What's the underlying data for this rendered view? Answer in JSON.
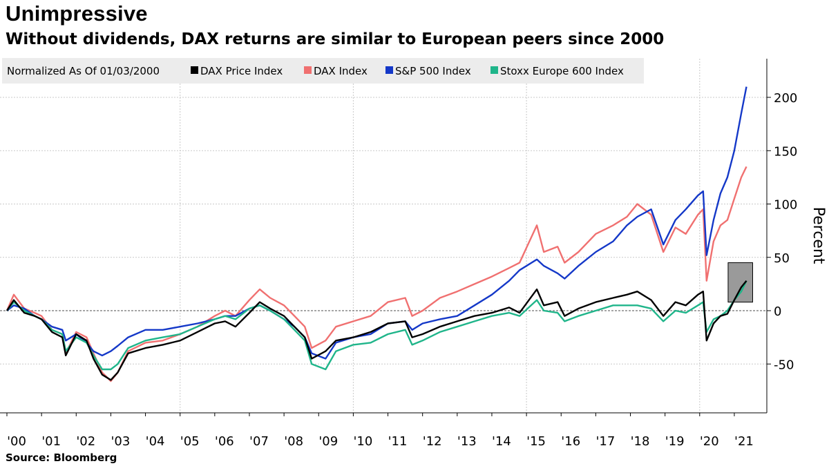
{
  "header": {
    "title": "Unimpressive",
    "subtitle": "Without dividends, DAX returns are similar to European peers since 2000"
  },
  "footer": {
    "source": "Source: Bloomberg"
  },
  "chart_data": {
    "type": "line",
    "legend_title": "Normalized As Of 01/03/2000",
    "legend_position": "top-left",
    "ylabel": "Percent",
    "ylim": [
      -95,
      235
    ],
    "yticks": [
      200,
      150,
      100,
      50,
      0,
      -50
    ],
    "xlim": [
      2000.0,
      2021.4
    ],
    "x_tick_labels": [
      "'00",
      "'01",
      "'02",
      "'03",
      "'04",
      "'05",
      "'06",
      "'07",
      "'08",
      "'09",
      "'10",
      "'11",
      "'12",
      "'13",
      "'14",
      "'15",
      "'16",
      "'17",
      "'18",
      "'19",
      "'20",
      "'21"
    ],
    "x_tick_positions": [
      2000,
      2001,
      2002,
      2003,
      2004,
      2005,
      2006,
      2007,
      2008,
      2009,
      2010,
      2011,
      2012,
      2013,
      2014,
      2015,
      2016,
      2017,
      2018,
      2019,
      2020,
      2021
    ],
    "grid": true,
    "zero_line": true,
    "highlight_box": {
      "x": [
        2021.0,
        2021.35
      ],
      "y": [
        8,
        45
      ]
    },
    "series": [
      {
        "name": "DAX Price Index",
        "color": "#000000",
        "x": [
          2000.0,
          2000.2,
          2000.5,
          2000.8,
          2001.0,
          2001.3,
          2001.6,
          2001.7,
          2002.0,
          2002.3,
          2002.5,
          2002.75,
          2003.0,
          2003.2,
          2003.5,
          2004.0,
          2004.5,
          2005.0,
          2005.5,
          2006.0,
          2006.3,
          2006.6,
          2007.0,
          2007.3,
          2007.6,
          2008.0,
          2008.3,
          2008.6,
          2008.8,
          2009.2,
          2009.5,
          2010.0,
          2010.5,
          2011.0,
          2011.5,
          2011.7,
          2012.0,
          2012.5,
          2013.0,
          2013.5,
          2014.0,
          2014.5,
          2014.8,
          2015.3,
          2015.5,
          2015.9,
          2016.1,
          2016.5,
          2017.0,
          2017.5,
          2017.9,
          2018.2,
          2018.6,
          2018.95,
          2019.3,
          2019.6,
          2019.95,
          2020.1,
          2020.2,
          2020.4,
          2020.6,
          2020.8,
          2021.0,
          2021.2,
          2021.35
        ],
        "y": [
          0,
          10,
          -2,
          -5,
          -8,
          -20,
          -25,
          -42,
          -22,
          -28,
          -45,
          -60,
          -65,
          -58,
          -40,
          -35,
          -32,
          -28,
          -20,
          -12,
          -10,
          -15,
          -2,
          8,
          2,
          -5,
          -15,
          -25,
          -45,
          -38,
          -28,
          -25,
          -20,
          -12,
          -10,
          -25,
          -22,
          -15,
          -10,
          -5,
          -2,
          3,
          -2,
          20,
          5,
          8,
          -5,
          2,
          8,
          12,
          15,
          18,
          10,
          -5,
          8,
          5,
          15,
          18,
          -28,
          -12,
          -5,
          -3,
          10,
          22,
          28
        ]
      },
      {
        "name": "DAX Index",
        "color": "#f07070",
        "x": [
          2000.0,
          2000.2,
          2000.5,
          2000.8,
          2001.0,
          2001.3,
          2001.6,
          2001.7,
          2002.0,
          2002.3,
          2002.5,
          2002.75,
          2003.0,
          2003.2,
          2003.5,
          2004.0,
          2004.5,
          2005.0,
          2005.5,
          2006.0,
          2006.3,
          2006.6,
          2007.0,
          2007.3,
          2007.6,
          2008.0,
          2008.3,
          2008.6,
          2008.8,
          2009.2,
          2009.5,
          2010.0,
          2010.5,
          2011.0,
          2011.5,
          2011.7,
          2012.0,
          2012.5,
          2013.0,
          2013.5,
          2014.0,
          2014.5,
          2014.8,
          2015.3,
          2015.5,
          2015.9,
          2016.1,
          2016.5,
          2017.0,
          2017.5,
          2017.9,
          2018.2,
          2018.6,
          2018.95,
          2019.3,
          2019.6,
          2019.95,
          2020.1,
          2020.2,
          2020.4,
          2020.6,
          2020.8,
          2021.0,
          2021.2,
          2021.35
        ],
        "y": [
          0,
          15,
          2,
          -2,
          -5,
          -18,
          -22,
          -40,
          -20,
          -25,
          -40,
          -58,
          -66,
          -58,
          -38,
          -30,
          -28,
          -22,
          -15,
          -5,
          0,
          -5,
          10,
          20,
          12,
          5,
          -5,
          -15,
          -35,
          -28,
          -15,
          -10,
          -5,
          8,
          12,
          -5,
          0,
          12,
          18,
          25,
          32,
          40,
          45,
          80,
          55,
          60,
          45,
          55,
          72,
          80,
          88,
          100,
          90,
          55,
          78,
          72,
          90,
          95,
          28,
          65,
          80,
          85,
          105,
          125,
          135
        ]
      },
      {
        "name": "S&P 500 Index",
        "color": "#1438c8",
        "x": [
          2000.0,
          2000.2,
          2000.5,
          2000.8,
          2001.0,
          2001.3,
          2001.6,
          2001.7,
          2002.0,
          2002.3,
          2002.5,
          2002.75,
          2003.0,
          2003.2,
          2003.5,
          2004.0,
          2004.5,
          2005.0,
          2005.5,
          2006.0,
          2006.3,
          2006.6,
          2007.0,
          2007.3,
          2007.6,
          2008.0,
          2008.3,
          2008.6,
          2008.8,
          2009.2,
          2009.5,
          2010.0,
          2010.5,
          2011.0,
          2011.5,
          2011.7,
          2012.0,
          2012.5,
          2013.0,
          2013.5,
          2014.0,
          2014.5,
          2014.8,
          2015.3,
          2015.5,
          2015.9,
          2016.1,
          2016.5,
          2017.0,
          2017.5,
          2017.9,
          2018.2,
          2018.6,
          2018.95,
          2019.3,
          2019.6,
          2019.95,
          2020.1,
          2020.2,
          2020.4,
          2020.6,
          2020.8,
          2021.0,
          2021.2,
          2021.35
        ],
        "y": [
          0,
          5,
          2,
          -5,
          -8,
          -15,
          -18,
          -28,
          -22,
          -30,
          -38,
          -42,
          -38,
          -33,
          -25,
          -18,
          -18,
          -15,
          -12,
          -8,
          -5,
          -5,
          2,
          5,
          0,
          -8,
          -15,
          -25,
          -40,
          -45,
          -30,
          -25,
          -22,
          -12,
          -10,
          -18,
          -12,
          -8,
          -5,
          5,
          15,
          28,
          38,
          48,
          42,
          35,
          30,
          42,
          55,
          65,
          80,
          88,
          95,
          62,
          85,
          95,
          108,
          112,
          52,
          85,
          110,
          125,
          150,
          185,
          210
        ]
      },
      {
        "name": "Stoxx Europe 600 Index",
        "color": "#1fb58a",
        "x": [
          2000.0,
          2000.2,
          2000.5,
          2000.8,
          2001.0,
          2001.3,
          2001.6,
          2001.7,
          2002.0,
          2002.3,
          2002.5,
          2002.75,
          2003.0,
          2003.2,
          2003.5,
          2004.0,
          2004.5,
          2005.0,
          2005.5,
          2006.0,
          2006.3,
          2006.6,
          2007.0,
          2007.3,
          2007.6,
          2008.0,
          2008.3,
          2008.6,
          2008.8,
          2009.2,
          2009.5,
          2010.0,
          2010.5,
          2011.0,
          2011.5,
          2011.7,
          2012.0,
          2012.5,
          2013.0,
          2013.5,
          2014.0,
          2014.5,
          2014.8,
          2015.3,
          2015.5,
          2015.9,
          2016.1,
          2016.5,
          2017.0,
          2017.5,
          2017.9,
          2018.2,
          2018.6,
          2018.95,
          2019.3,
          2019.6,
          2019.95,
          2020.1,
          2020.2,
          2020.4,
          2020.6,
          2020.8,
          2021.0,
          2021.2,
          2021.35
        ],
        "y": [
          0,
          8,
          0,
          -5,
          -8,
          -18,
          -22,
          -38,
          -25,
          -30,
          -42,
          -55,
          -55,
          -50,
          -35,
          -28,
          -25,
          -22,
          -15,
          -8,
          -5,
          -8,
          2,
          5,
          0,
          -8,
          -18,
          -28,
          -50,
          -55,
          -38,
          -32,
          -30,
          -22,
          -18,
          -32,
          -28,
          -20,
          -15,
          -10,
          -5,
          -2,
          -5,
          10,
          0,
          -2,
          -10,
          -5,
          0,
          5,
          5,
          5,
          2,
          -10,
          0,
          -2,
          5,
          8,
          -20,
          -8,
          -5,
          0,
          10,
          18,
          28
        ]
      }
    ]
  }
}
